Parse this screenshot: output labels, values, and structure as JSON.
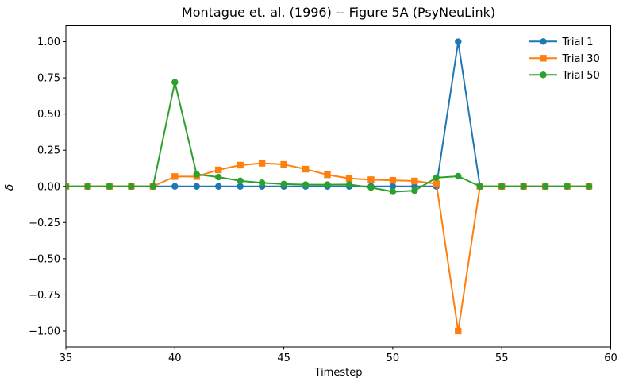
{
  "chart_data": {
    "type": "line",
    "title": "Montague et. al. (1996) -- Figure 5A (PsyNeuLink)",
    "xlabel": "Timestep",
    "ylabel": "δ",
    "grid": false,
    "legend_position": "upper right",
    "xlim": [
      35,
      60
    ],
    "ylim": [
      -1.11,
      1.11
    ],
    "xticks": [
      35,
      40,
      45,
      50,
      55,
      60
    ],
    "xtick_labels": [
      "35",
      "40",
      "45",
      "50",
      "55",
      "60"
    ],
    "yticks": [
      1.0,
      0.75,
      0.5,
      0.25,
      0.0,
      -0.25,
      -0.5,
      -0.75,
      -1.0
    ],
    "ytick_labels": [
      "1.00",
      "0.75",
      "0.50",
      "0.25",
      "0.00",
      "−0.25",
      "−0.50",
      "−0.75",
      "−1.00"
    ],
    "x": [
      35,
      36,
      37,
      38,
      39,
      40,
      41,
      42,
      43,
      44,
      45,
      46,
      47,
      48,
      49,
      50,
      51,
      52,
      53,
      54,
      55,
      56,
      57,
      58,
      59
    ],
    "series": [
      {
        "name": "Trial 1",
        "color": "#1f77b4",
        "marker": "circle",
        "values": [
          0,
          0,
          0,
          0,
          0,
          0,
          0,
          0,
          0,
          0,
          0,
          0,
          0,
          0,
          0,
          0,
          0,
          0,
          1.0,
          0,
          0,
          0,
          0,
          0,
          0
        ]
      },
      {
        "name": "Trial 30",
        "color": "#ff7f0e",
        "marker": "square",
        "values": [
          0,
          0,
          0,
          0,
          0,
          0.068,
          0.068,
          0.114,
          0.147,
          0.16,
          0.152,
          0.119,
          0.08,
          0.055,
          0.046,
          0.042,
          0.037,
          0.018,
          -1.0,
          0,
          0,
          0,
          0,
          0,
          0
        ]
      },
      {
        "name": "Trial 50",
        "color": "#2ca02c",
        "marker": "circle",
        "values": [
          0,
          0,
          0,
          0,
          0,
          0.72,
          0.083,
          0.064,
          0.038,
          0.025,
          0.016,
          0.012,
          0.012,
          0.013,
          -0.008,
          -0.037,
          -0.03,
          0.06,
          0.07,
          0,
          0,
          0,
          0,
          0,
          0
        ]
      }
    ]
  }
}
